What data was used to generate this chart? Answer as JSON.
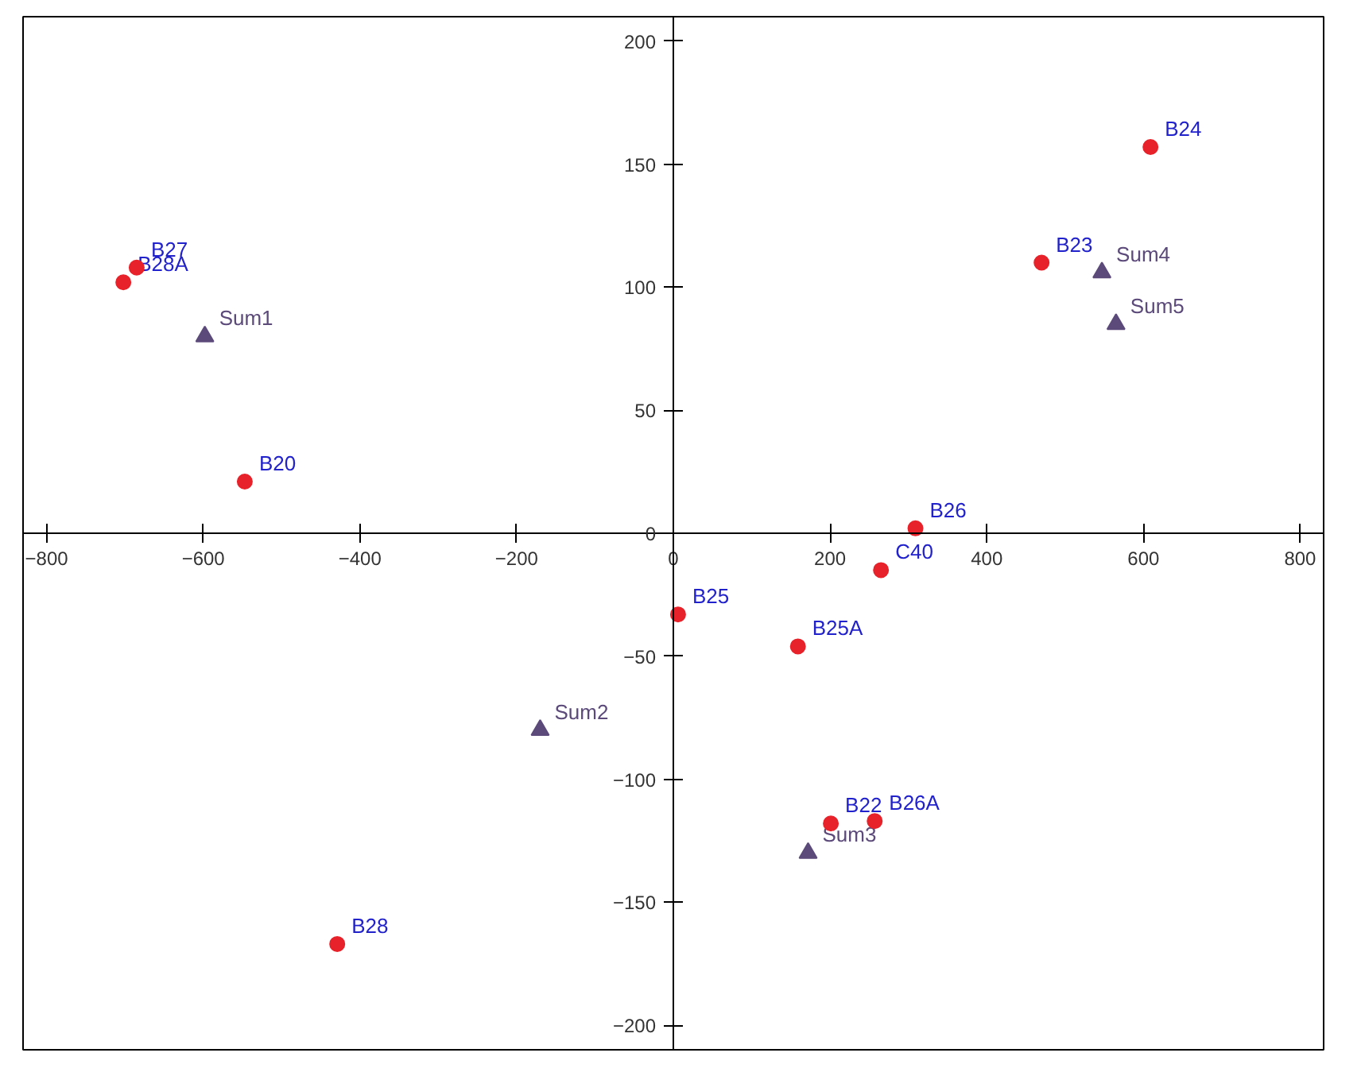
{
  "chart_data": {
    "type": "scatter",
    "xlim": [
      -830,
      830
    ],
    "ylim": [
      -210,
      210
    ],
    "xticks": [
      -800,
      -600,
      -400,
      -200,
      0,
      200,
      400,
      600,
      800
    ],
    "yticks": [
      -200,
      -150,
      -100,
      -50,
      0,
      50,
      100,
      150,
      200
    ],
    "series": [
      {
        "color": "#e8222a",
        "marker": "circle",
        "x": [
          609,
          470,
          -685,
          -702,
          -547,
          309,
          265,
          6,
          159,
          201,
          257,
          -429
        ],
        "values": [
          157,
          110,
          108,
          102,
          21,
          2,
          -15,
          -33,
          -46,
          -118,
          -117,
          -167
        ],
        "value_labels": [
          "B24",
          "B23",
          "B27",
          "B28A",
          "B20",
          "B26",
          "C40",
          "B25",
          "B25A",
          "B22",
          "B26A",
          "B28"
        ]
      },
      {
        "color": "#5b4a7a",
        "marker": "triangle",
        "x": [
          547,
          565,
          -598,
          -170,
          172
        ],
        "values": [
          106,
          85,
          80,
          -80,
          -130
        ],
        "value_labels": [
          "Sum4",
          "Sum5",
          "Sum1",
          "Sum2",
          "Sum3"
        ]
      }
    ]
  }
}
